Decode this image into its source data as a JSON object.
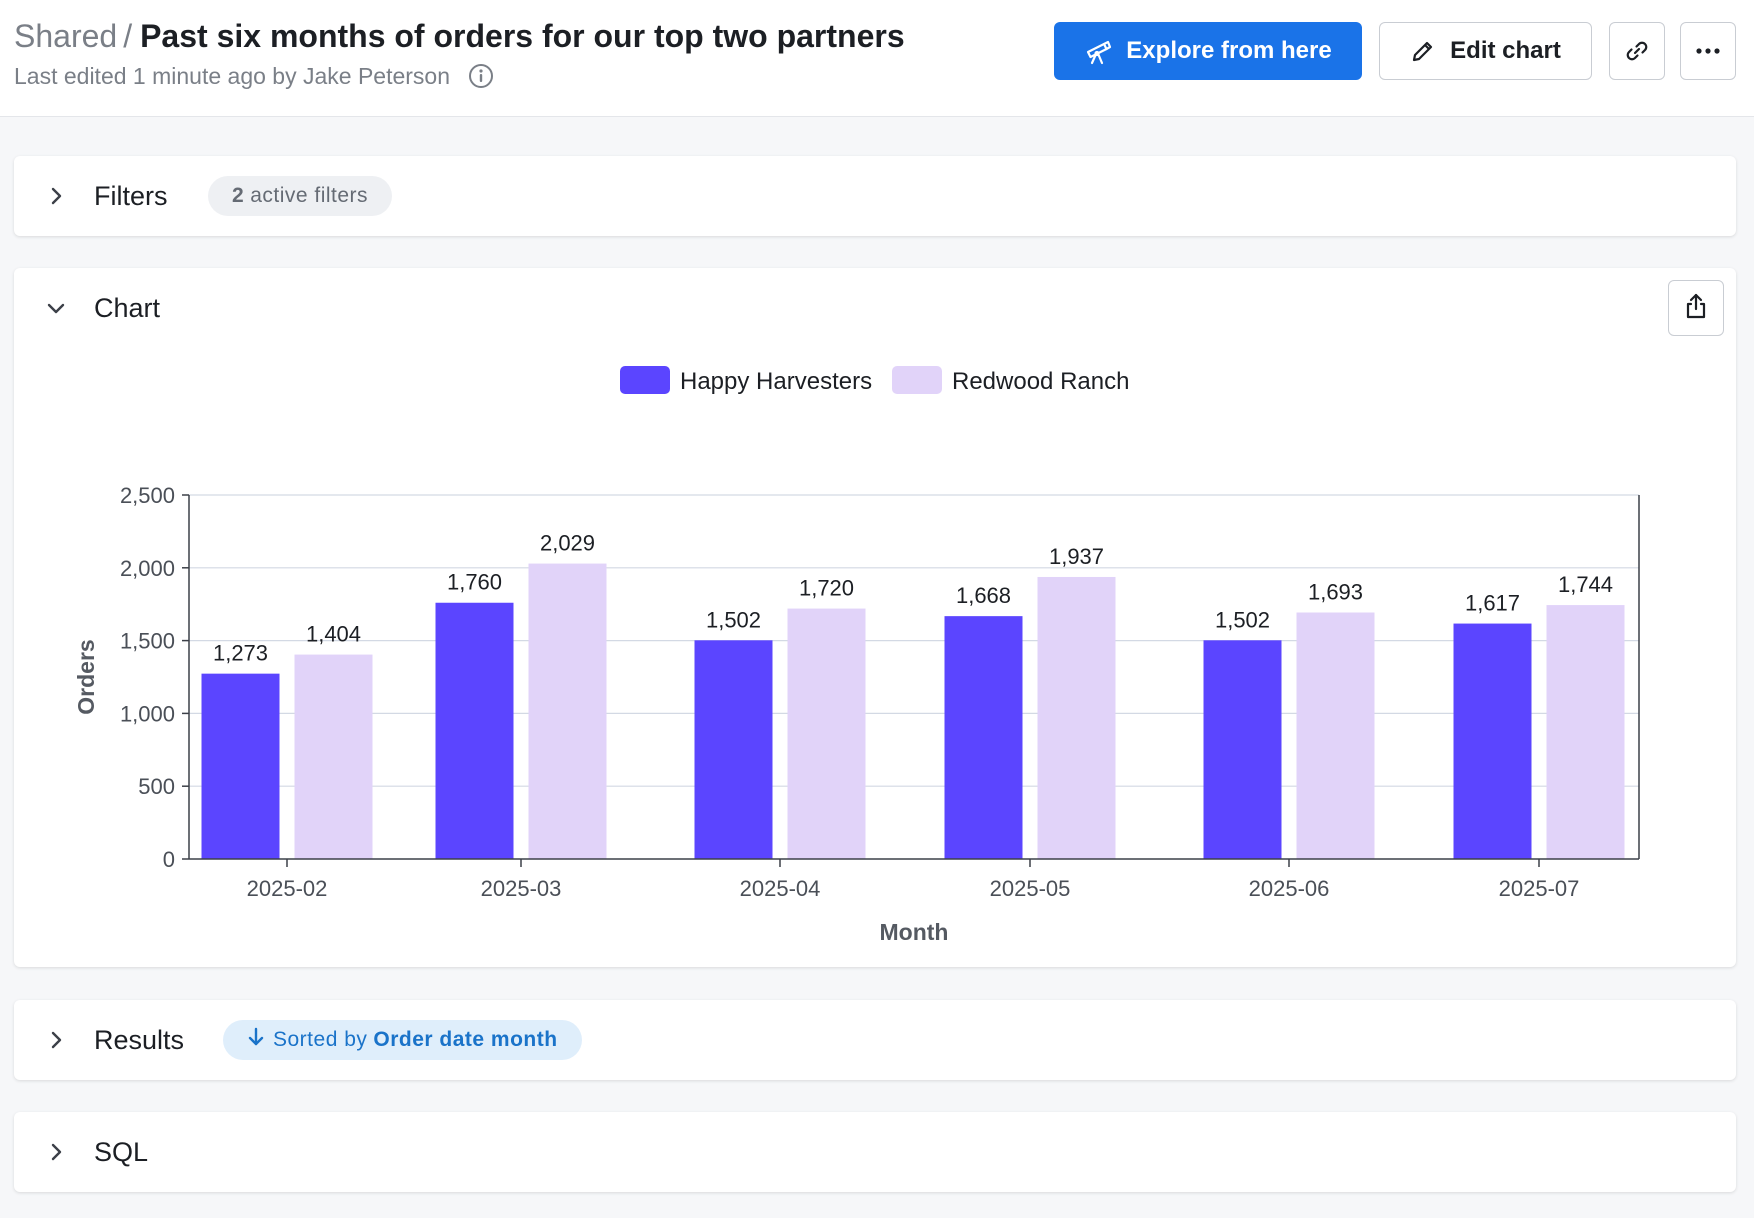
{
  "header": {
    "breadcrumb": "Shared",
    "separator": "/",
    "title": "Past six months of orders for our top two partners",
    "subtitle": "Last edited 1 minute ago by Jake Peterson",
    "explore_label": "Explore from here",
    "edit_label": "Edit chart"
  },
  "filters": {
    "label": "Filters",
    "count": "2",
    "count_suffix": "active filters"
  },
  "chart_panel": {
    "label": "Chart"
  },
  "results": {
    "label": "Results",
    "sort_prefix": "Sorted by",
    "sort_field": "Order date month"
  },
  "sql": {
    "label": "SQL"
  },
  "colors": {
    "primary_button": "#1a73e8",
    "series_1": "#5b45ff",
    "series_2": "#e1d3f9"
  },
  "chart_data": {
    "type": "bar",
    "title": "",
    "xlabel": "Month",
    "ylabel": "Orders",
    "categories": [
      "2025-02",
      "2025-03",
      "2025-04",
      "2025-05",
      "2025-06",
      "2025-07"
    ],
    "series": [
      {
        "name": "Happy Harvesters",
        "color": "#5b45ff",
        "values": [
          1273,
          1760,
          1502,
          1668,
          1502,
          1617
        ],
        "labels": [
          "1,273",
          "1,760",
          "1,502",
          "1,668",
          "1,502",
          "1,617"
        ]
      },
      {
        "name": "Redwood Ranch",
        "color": "#e1d3f9",
        "values": [
          1404,
          2029,
          1720,
          1937,
          1693,
          1744
        ],
        "labels": [
          "1,404",
          "2,029",
          "1,720",
          "1,937",
          "1,693",
          "1,744"
        ]
      }
    ],
    "ylim": [
      0,
      2500
    ],
    "yticks": [
      0,
      500,
      1000,
      1500,
      2000,
      2500
    ],
    "ytick_labels": [
      "0",
      "500",
      "1,000",
      "1,500",
      "2,000",
      "2,500"
    ],
    "grid": true,
    "legend": "top-center"
  }
}
